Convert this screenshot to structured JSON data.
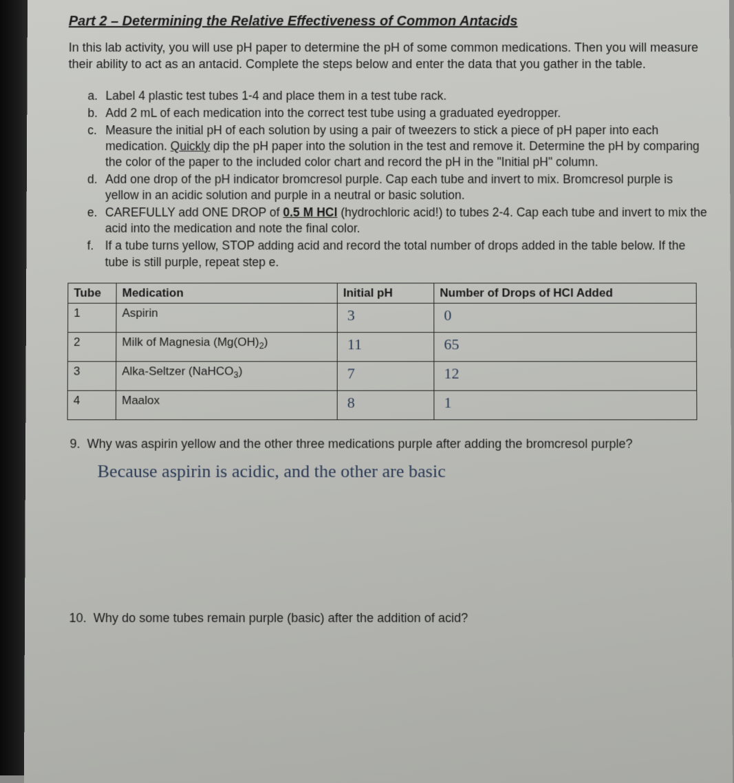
{
  "title": "Part 2 – Determining the Relative Effectiveness of Common Antacids",
  "intro": "In this lab activity, you will use pH paper to determine the pH of some common medications. Then you will measure their ability to act as an antacid. Complete the steps below and enter the data that you gather in the table.",
  "steps": {
    "a": {
      "marker": "a.",
      "text": "Label 4 plastic test tubes 1-4 and place them in a test tube rack."
    },
    "b": {
      "marker": "b.",
      "text": "Add 2 mL of each medication into the correct test tube using a graduated eyedropper."
    },
    "c": {
      "marker": "c.",
      "pre": "Measure the initial pH of each solution by using a pair of tweezers to stick a piece of pH paper into each medication. ",
      "quick": "Quickly",
      "post": " dip the pH paper into the solution in the test and remove it. Determine the pH by comparing the color of the paper to the included color chart and record the pH in the \"Initial pH\" column."
    },
    "d": {
      "marker": "d.",
      "text": "Add one drop of the pH indicator bromcresol purple. Cap each tube and invert to mix. Bromcresol purple is yellow in an acidic solution and purple in a neutral or basic solution."
    },
    "e": {
      "marker": "e.",
      "pre": "CAREFULLY add ONE DROP of ",
      "hcl": "0.5 M HCl",
      "post": " (hydrochloric acid!) to tubes 2-4. Cap each tube and invert to mix the acid into the medication and note the final color."
    },
    "f": {
      "marker": "f.",
      "text": "If a tube turns yellow, STOP adding acid and record the total number of drops added in the table below. If the tube is still purple, repeat step e."
    }
  },
  "table": {
    "headers": {
      "tube": "Tube",
      "med": "Medication",
      "ph": "Initial pH",
      "drops": "Number of Drops of HCl Added"
    },
    "rows": [
      {
        "tube": "1",
        "med": "Aspirin",
        "ph": "3",
        "drops": "0"
      },
      {
        "tube": "2",
        "med_pre": "Milk of Magnesia (Mg(OH)",
        "med_sub": "2",
        "med_post": ")",
        "ph": "11",
        "drops": "65"
      },
      {
        "tube": "3",
        "med_pre": "Alka-Seltzer (NaHCO",
        "med_sub": "3",
        "med_post": ")",
        "ph": "7",
        "drops": "12"
      },
      {
        "tube": "4",
        "med": "Maalox",
        "ph": "8",
        "drops": "1"
      }
    ]
  },
  "q9": {
    "num": "9.",
    "text": "Why was aspirin yellow and the other three medications purple after adding the bromcresol purple?",
    "answer": "Because aspirin is acidic, and the other are basic"
  },
  "q10": {
    "num": "10.",
    "text": "Why do some tubes remain purple (basic) after the addition of acid?"
  }
}
